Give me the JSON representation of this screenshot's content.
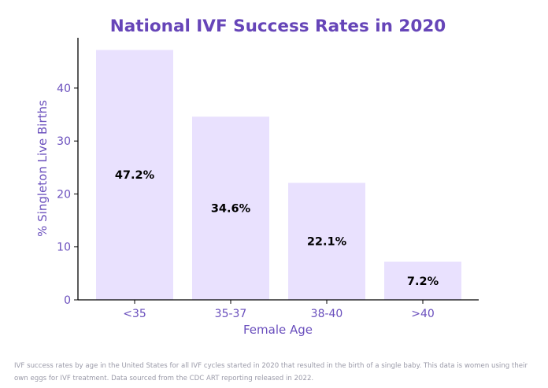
{
  "chart_data": {
    "type": "bar",
    "title": "National IVF Success Rates in 2020",
    "xlabel": "Female Age",
    "ylabel": "% Singleton Live Births",
    "categories": [
      "<35",
      "35-37",
      "38-40",
      ">40"
    ],
    "values": [
      47.2,
      34.6,
      22.1,
      7.2
    ],
    "value_labels": [
      "47.2%",
      "34.6%",
      "22.1%",
      "7.2%"
    ],
    "ylim": [
      0,
      49.5
    ],
    "yticks": [
      0,
      10,
      20,
      30,
      40
    ],
    "ytick_labels": [
      "0",
      "10",
      "20",
      "30",
      "40"
    ],
    "grid": false,
    "legend": "none"
  },
  "colors": {
    "bar_fill": "#e9e1fe",
    "title": "#6645b8",
    "axis_text": "#6a4fbd",
    "value_label": "#000000",
    "axis_line": "#000000"
  },
  "caption": "IVF success rates by age in the United States for all IVF cycles started in 2020 that resulted in the birth of a single baby. This data is women using their own eggs for IVF treatment. Data sourced from the CDC ART reporting released in 2022."
}
